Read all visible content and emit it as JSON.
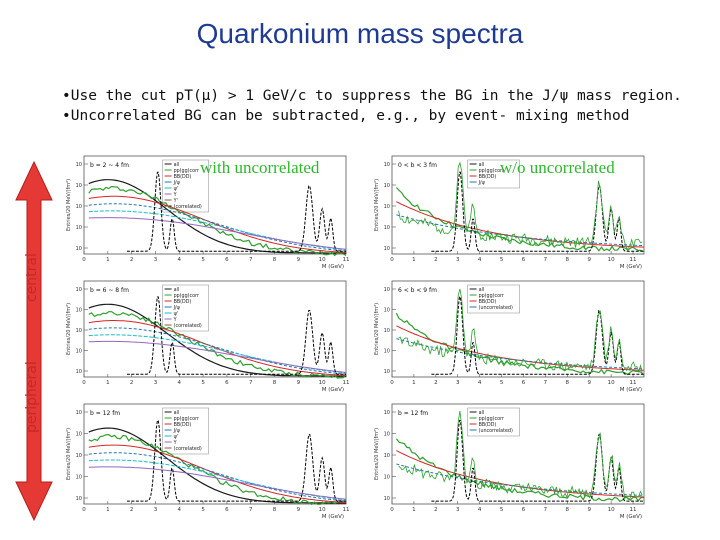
{
  "slide": {
    "title": "Quarkonium mass spectra",
    "bullets": [
      "•Use the cut  pT(μ) > 1 GeV/c  to suppress the BG in the J/ψ mass region.",
      "•Uncorrelated BG can be subtracted, e.g., by event- mixing method"
    ],
    "labels": {
      "central": "central",
      "peripheral": "peripheral"
    },
    "overlays": {
      "with": "with uncorrelated",
      "without": "w/o uncorrelated"
    },
    "colors": {
      "title": "#1f3a93",
      "arrow": "#e53935",
      "overlay": "#2db82d"
    }
  },
  "chart_data": [
    {
      "type": "line",
      "panel": "central-left",
      "condition": "b = 2 ~ 4 fm",
      "ylabel": "Entries/20 MeV/(fm²)",
      "xlabel": "M (GeV)",
      "xlim": [
        0,
        11
      ],
      "legend": [
        "all",
        "pp(gg)corr",
        "BB(DD)",
        "J/ψ",
        "ψ'",
        "Y",
        "Y'",
        "(correlated)"
      ]
    },
    {
      "type": "line",
      "panel": "central-right",
      "condition": "0 < b < 3 fm",
      "ylabel": "Entries/20 MeV/(fm²)",
      "xlabel": "M (GeV)",
      "xlim": [
        0,
        11.5
      ],
      "legend": [
        "all",
        "pp(gg)corr",
        "BB(DD)",
        "J/ψ"
      ]
    },
    {
      "type": "line",
      "panel": "mid-left",
      "condition": "b = 6 ~ 8 fm",
      "ylabel": "Entries/20 MeV/(fm²)",
      "xlabel": "M (GeV)",
      "xlim": [
        0,
        11
      ],
      "legend": [
        "all",
        "pp(gg)corr",
        "BB(DD)",
        "J/ψ",
        "ψ'",
        "Y",
        "(correlated)"
      ]
    },
    {
      "type": "line",
      "panel": "mid-right",
      "condition": "6 < b < 9 fm",
      "ylabel": "Entries/20 MeV/(fm²)",
      "xlabel": "M (GeV)",
      "xlim": [
        0,
        11.5
      ],
      "legend": [
        "all",
        "pp(gg)corr",
        "BB(DD)",
        "(uncorrelated)"
      ]
    },
    {
      "type": "line",
      "panel": "periph-left",
      "condition": "b = 12 fm",
      "ylabel": "Entries/20 MeV/(fm²)",
      "xlabel": "M (GeV)",
      "xlim": [
        0,
        11
      ],
      "legend": [
        "all",
        "pp(gg)corr",
        "BB(DD)",
        "J/ψ",
        "ψ'",
        "Y",
        "(correlated)"
      ]
    },
    {
      "type": "line",
      "panel": "periph-right",
      "condition": "b = 12 fm",
      "ylabel": "Entries/20 MeV/(fm²)",
      "xlabel": "M (GeV)",
      "xlim": [
        0,
        11.5
      ],
      "legend": [
        "all",
        "pp(gg)corr",
        "BB(DD)",
        "(uncorrelated)"
      ]
    }
  ]
}
